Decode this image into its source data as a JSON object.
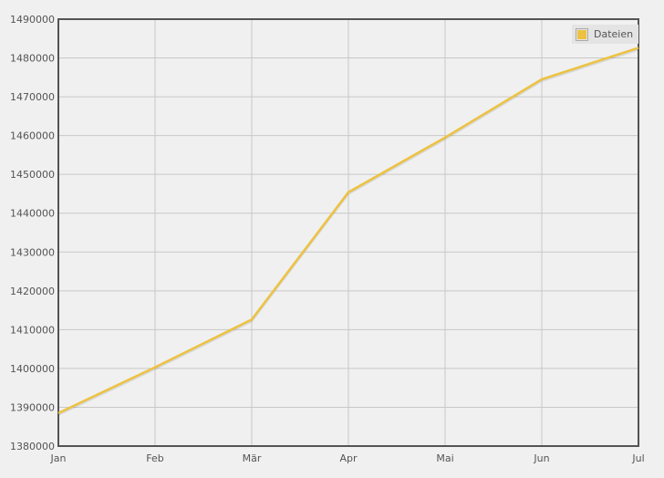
{
  "chart_data": {
    "type": "line",
    "title": "",
    "xlabel": "",
    "ylabel": "",
    "categories": [
      "Jan",
      "Feb",
      "Mär",
      "Apr",
      "Mai",
      "Jun",
      "Jul"
    ],
    "series": [
      {
        "name": "Dateien",
        "color": "#edc240",
        "values": [
          1388500,
          1400300,
          1412600,
          1445400,
          1459500,
          1474500,
          1482600
        ]
      }
    ],
    "ylim": [
      1380000,
      1490000
    ],
    "yticks": [
      1380000,
      1390000,
      1400000,
      1410000,
      1420000,
      1430000,
      1440000,
      1450000,
      1460000,
      1470000,
      1480000,
      1490000
    ],
    "grid": true,
    "legend_position": "top-right"
  }
}
